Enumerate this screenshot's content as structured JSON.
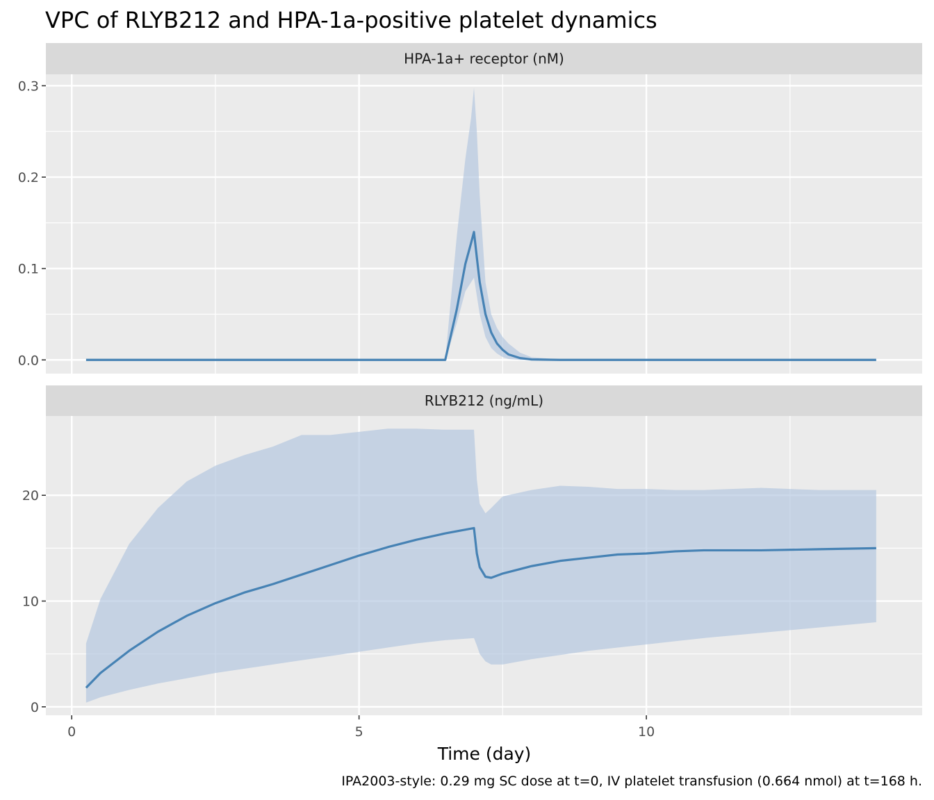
{
  "chart_data": {
    "type": "line",
    "title": "VPC of RLYB212 and HPA-1a-positive platelet dynamics",
    "xlabel": "Time (day)",
    "caption": "IPA2003-style: 0.29 mg SC dose at t=0, IV platelet transfusion (0.664 nmol) at t=168 h.",
    "xlim": [
      -0.45,
      14.8
    ],
    "x_ticks": [
      0,
      5,
      10
    ],
    "x_tick_labels": [
      "0",
      "5",
      "10"
    ],
    "colors": {
      "line": "#4682B4",
      "ribbon": "#B0C4DE",
      "panel": "#EBEBEB",
      "strip": "#D9D9D9"
    },
    "panels": [
      {
        "strip_label": "HPA-1a+ receptor (nM)",
        "ylim": [
          -0.015,
          0.3125
        ],
        "y_ticks": [
          0,
          0.1,
          0.2,
          0.3
        ],
        "y_tick_labels": [
          "0.0",
          "0.1",
          "0.2",
          "0.3"
        ],
        "x": [
          0.25,
          1,
          2,
          3,
          4,
          5,
          6,
          6.5,
          6.7,
          6.85,
          6.95,
          7.0,
          7.05,
          7.1,
          7.2,
          7.3,
          7.4,
          7.5,
          7.6,
          7.8,
          8.0,
          8.5,
          9,
          10,
          11,
          12,
          13,
          14
        ],
        "median": [
          0,
          0,
          0,
          0,
          0,
          0,
          0,
          0,
          0.055,
          0.105,
          0.128,
          0.14,
          0.112,
          0.085,
          0.05,
          0.03,
          0.018,
          0.011,
          0.006,
          0.002,
          0.0005,
          0,
          0,
          0,
          0,
          0,
          0,
          0
        ],
        "lower": [
          0,
          0,
          0,
          0,
          0,
          0,
          0,
          0,
          0.04,
          0.075,
          0.085,
          0.09,
          0.07,
          0.05,
          0.025,
          0.013,
          0.007,
          0.003,
          0.001,
          0,
          0,
          0,
          0,
          0,
          0,
          0,
          0,
          0
        ],
        "upper": [
          0,
          0,
          0,
          0,
          0,
          0,
          0,
          0,
          0.135,
          0.22,
          0.265,
          0.298,
          0.25,
          0.18,
          0.085,
          0.05,
          0.035,
          0.025,
          0.018,
          0.008,
          0.003,
          0.0005,
          0,
          0,
          0,
          0,
          0,
          0
        ]
      },
      {
        "strip_label": "RLYB212 (ng/mL)",
        "ylim": [
          -0.8,
          27.5
        ],
        "y_ticks": [
          0,
          10,
          20
        ],
        "y_tick_labels": [
          "0",
          "10",
          "20"
        ],
        "x": [
          0.25,
          0.5,
          1,
          1.5,
          2,
          2.5,
          3,
          3.5,
          4,
          4.5,
          5,
          5.5,
          6,
          6.5,
          7.0,
          7.05,
          7.1,
          7.2,
          7.3,
          7.5,
          8,
          8.5,
          9,
          9.5,
          10,
          10.5,
          11,
          12,
          13,
          14
        ],
        "median": [
          1.8,
          3.2,
          5.3,
          7.1,
          8.6,
          9.8,
          10.8,
          11.6,
          12.5,
          13.4,
          14.3,
          15.1,
          15.8,
          16.4,
          16.9,
          14.5,
          13.2,
          12.3,
          12.2,
          12.6,
          13.3,
          13.8,
          14.1,
          14.4,
          14.5,
          14.7,
          14.8,
          14.8,
          14.9,
          15.0
        ],
        "lower": [
          0.4,
          0.9,
          1.6,
          2.2,
          2.7,
          3.2,
          3.6,
          4.0,
          4.4,
          4.8,
          5.2,
          5.6,
          6.0,
          6.3,
          6.5,
          5.8,
          5.0,
          4.3,
          4.0,
          4.0,
          4.5,
          4.9,
          5.3,
          5.6,
          5.9,
          6.2,
          6.5,
          7.0,
          7.5,
          8.0
        ],
        "upper": [
          6.0,
          10.2,
          15.4,
          18.8,
          21.3,
          22.8,
          23.8,
          24.6,
          25.7,
          25.7,
          26.0,
          26.3,
          26.3,
          26.2,
          26.2,
          21.5,
          19.2,
          18.3,
          18.8,
          19.9,
          20.5,
          20.9,
          20.8,
          20.6,
          20.6,
          20.5,
          20.5,
          20.7,
          20.5,
          20.5
        ]
      }
    ]
  }
}
